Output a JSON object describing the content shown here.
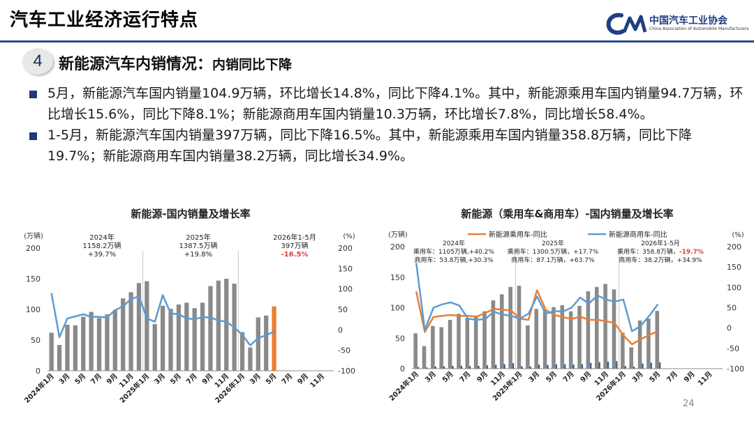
{
  "slide": {
    "title": "汽车工业经济运行特点",
    "logo_cn": "中国汽车工业协会",
    "logo_en": "China Association of Automobile Manufacturers",
    "section_number": "4",
    "section_title": "新能源汽车内销情况：",
    "section_subtitle": "内销同比下降",
    "bullets": [
      "5月，新能源汽车国内销量104.9万辆，环比增长14.8%，同比下降4.1%。其中，新能源乘用车国内销量94.7万辆，环比增长15.6%，同比下降8.1%；新能源商用车国内销量10.3万辆，环比增长7.8%，同比增长58.4%。",
      "1-5月，新能源汽车国内销量397万辆，同比下降16.5%。其中，新能源乘用车国内销量358.8万辆，同比下降19.7%；新能源商用车国内销量38.2万辆，同比增长34.9%。"
    ],
    "page_number": "24"
  },
  "colors": {
    "brand": "#1f3f82",
    "bar": "#8a8a8a",
    "bar_highlight": "#ed7d31",
    "line_blue": "#5b9bd5",
    "line_orange": "#ed7d31",
    "commercial_bar": "#2e5f94",
    "negative": "#e53935"
  },
  "chart_data": [
    {
      "type": "bar",
      "title": "新能源-国内销量及增长率",
      "left_axis_unit": "(万辆)",
      "right_axis_unit": "(%)",
      "categories": [
        "2024年1月",
        "2月",
        "3月",
        "4月",
        "5月",
        "6月",
        "7月",
        "8月",
        "9月",
        "10月",
        "11月",
        "12月",
        "2025年1月",
        "2月",
        "3月",
        "4月",
        "5月",
        "6月",
        "7月",
        "8月",
        "9月",
        "10月",
        "11月",
        "12月",
        "2026年1月",
        "2月",
        "3月",
        "4月",
        "5月",
        "6月",
        "7月",
        "8月",
        "9月",
        "10月",
        "11月",
        "12月"
      ],
      "x_tick_labels": [
        "2024年1月",
        "3月",
        "5月",
        "7月",
        "9月",
        "11月",
        "2025年1月",
        "3月",
        "5月",
        "7月",
        "9月",
        "11月",
        "2026年1月",
        "3月",
        "5月",
        "7月",
        "9月",
        "11月"
      ],
      "series": [
        {
          "kind": "bar",
          "axis": "left",
          "values": [
            62,
            42,
            75,
            74,
            88,
            96,
            86,
            92,
            99,
            118,
            128,
            143,
            146,
            76,
            106,
            101,
            108,
            111,
            102,
            111,
            138,
            147,
            150,
            142,
            63,
            38,
            87,
            90,
            104.9,
            null,
            null,
            null,
            null,
            null,
            null,
            null
          ]
        },
        {
          "kind": "line",
          "axis": "right",
          "values": [
            90,
            -18,
            28,
            33,
            38,
            32,
            32,
            30,
            48,
            58,
            75,
            82,
            28,
            20,
            85,
            40,
            38,
            28,
            26,
            31,
            30,
            23,
            20,
            6,
            -12,
            -38,
            -20,
            -13,
            -4.1,
            null,
            null,
            null,
            null,
            null,
            null,
            null
          ]
        }
      ],
      "highlight_index": 28,
      "ylim_left": [
        0,
        200
      ],
      "ylim_right": [
        -100,
        200
      ],
      "left_ticks": [
        "0",
        "50",
        "100",
        "150",
        "200"
      ],
      "right_ticks": [
        "-100",
        "-50",
        "0",
        "50",
        "100",
        "150",
        "200"
      ],
      "annotations": [
        {
          "lines": [
            "2024年",
            "1158.2万辆",
            "+39.7%"
          ]
        },
        {
          "lines": [
            "2025年",
            "1387.5万辆",
            "+19.8%"
          ]
        },
        {
          "lines": [
            "2026年1-5月",
            "397万辆",
            "-16.5%"
          ],
          "red_line": 2
        }
      ]
    },
    {
      "type": "bar",
      "title": "新能源（乘用车&商用车）-国内销量及增长率",
      "left_axis_unit": "(万辆)",
      "right_axis_unit": "(%)",
      "legend": [
        "新能源乘用车-同比",
        "新能源商用车-同比"
      ],
      "categories": [
        "2024年1月",
        "2月",
        "3月",
        "4月",
        "5月",
        "6月",
        "7月",
        "8月",
        "9月",
        "10月",
        "11月",
        "12月",
        "2025年1月",
        "2月",
        "3月",
        "4月",
        "5月",
        "6月",
        "7月",
        "8月",
        "9月",
        "10月",
        "11月",
        "12月",
        "2026年1月",
        "2月",
        "3月",
        "4月",
        "5月",
        "6月",
        "7月",
        "8月",
        "9月",
        "10月",
        "11月",
        "12月"
      ],
      "x_tick_labels": [
        "2024年1月",
        "3月",
        "5月",
        "7月",
        "9月",
        "11月",
        "2025年1月",
        "3月",
        "5月",
        "7月",
        "9月",
        "11月",
        "2026年1月",
        "3月",
        "5月",
        "7月",
        "9月",
        "11月"
      ],
      "series": [
        {
          "name": "乘用车",
          "kind": "bar",
          "axis": "left",
          "values": [
            58,
            37,
            70,
            68,
            80,
            90,
            83,
            86,
            94,
            112,
            122,
            134,
            136,
            71,
            98,
            97,
            101,
            104,
            94,
            103,
            127,
            134,
            139,
            130,
            59,
            35,
            79,
            82,
            94.7,
            null,
            null,
            null,
            null,
            null,
            null,
            null
          ]
        },
        {
          "name": "商用车",
          "kind": "bar",
          "axis": "left",
          "values": [
            2.6,
            1.8,
            3.5,
            3.8,
            4.4,
            4.9,
            4.2,
            4.6,
            5.3,
            6.3,
            7.2,
            8.9,
            3.9,
            3.4,
            6.4,
            6.2,
            6.9,
            7.3,
            6.7,
            7.3,
            9.4,
            10.6,
            11.6,
            12.4,
            4.3,
            3.2,
            8.3,
            9.6,
            10.3,
            null,
            null,
            null,
            null,
            null,
            null,
            null
          ]
        },
        {
          "name": "新能源乘用车-同比",
          "kind": "line",
          "axis": "right",
          "values": [
            90,
            -10,
            27,
            30,
            32,
            30,
            30,
            28,
            37,
            47,
            45,
            43,
            23,
            20,
            93,
            45,
            32,
            27,
            22,
            28,
            20,
            20,
            17,
            12,
            -18,
            -40,
            -28,
            -17,
            -8.1,
            null,
            null,
            null,
            null,
            null,
            null,
            null
          ]
        },
        {
          "name": "新能源商用车-同比",
          "kind": "line",
          "axis": "right",
          "values": [
            160,
            -5,
            50,
            58,
            63,
            55,
            23,
            20,
            22,
            40,
            33,
            30,
            23,
            35,
            78,
            35,
            42,
            40,
            50,
            75,
            60,
            80,
            70,
            65,
            70,
            -8,
            5,
            30,
            58.4,
            null,
            null,
            null,
            null,
            null,
            null,
            null
          ]
        }
      ],
      "ylim_left": [
        0,
        200
      ],
      "ylim_right": [
        -100,
        200
      ],
      "left_ticks": [
        "0",
        "50",
        "100",
        "150",
        "200"
      ],
      "right_ticks": [
        "-100",
        "-50",
        "0",
        "50",
        "100",
        "150",
        "200"
      ],
      "annotations": [
        {
          "lines": [
            "2024年",
            "乘用车：1105万辆,+40.2%",
            "商用车：53.8万辆,+30.3%"
          ]
        },
        {
          "lines": [
            "2025年",
            "乘用车：1300.5万辆，+17.7%",
            "商用车：87.1万辆，+63.7%"
          ]
        },
        {
          "lines": [
            "2026年1-5月",
            "乘用车：358.8万辆，-19.7%",
            "商用车：38.2万辆，+34.9%"
          ],
          "red_part": "-19.7%"
        }
      ]
    }
  ]
}
